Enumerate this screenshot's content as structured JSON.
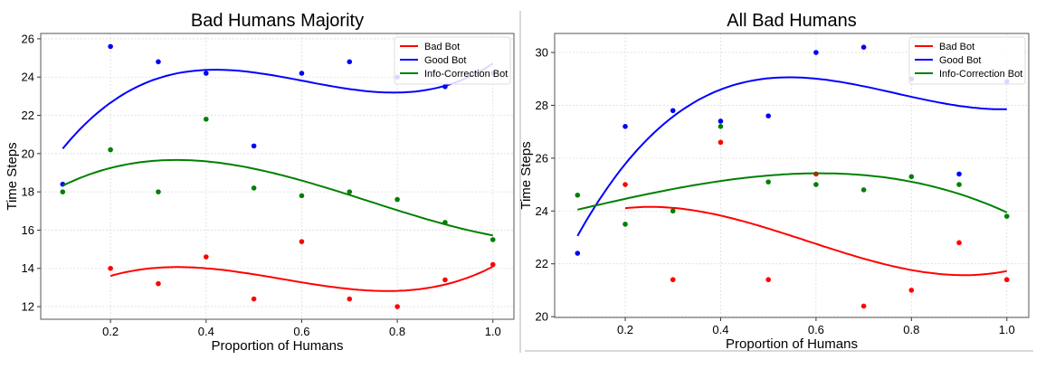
{
  "chart_data": [
    {
      "type": "scatter",
      "title": "Bad Humans Majority",
      "xlabel": "Proportion of Humans",
      "ylabel": "Time Steps",
      "xlim": [
        0.054,
        1.044
      ],
      "ylim": [
        11.34,
        26.28
      ],
      "xticks": [
        "0.2",
        "0.4",
        "0.6",
        "0.8",
        "1.0"
      ],
      "yticks": [
        "12",
        "14",
        "16",
        "18",
        "20",
        "22",
        "24",
        "26"
      ],
      "grid": true,
      "legend_position": "top-right",
      "trend": "cubic polynomial fit line per series",
      "series": [
        {
          "name": "Bad Bot",
          "color": "#ff0000",
          "x": [
            0.2,
            0.3,
            0.4,
            0.5,
            0.6,
            0.7,
            0.8,
            0.9,
            1.0
          ],
          "y": [
            14.0,
            13.2,
            14.6,
            12.4,
            15.4,
            12.4,
            12.0,
            13.4,
            14.2
          ]
        },
        {
          "name": "Good Bot",
          "color": "#0000ff",
          "x": [
            0.1,
            0.2,
            0.3,
            0.4,
            0.5,
            0.6,
            0.7,
            0.8,
            0.9,
            1.0
          ],
          "y": [
            18.4,
            25.6,
            24.8,
            24.2,
            20.4,
            24.2,
            24.8,
            24.0,
            23.5,
            24.2
          ]
        },
        {
          "name": "Info-Correction Bot",
          "color": "#008000",
          "x": [
            0.1,
            0.2,
            0.3,
            0.4,
            0.5,
            0.6,
            0.7,
            0.8,
            0.9,
            1.0
          ],
          "y": [
            18.0,
            20.2,
            18.0,
            21.8,
            18.2,
            17.8,
            18.0,
            17.6,
            16.4,
            15.5
          ]
        }
      ]
    },
    {
      "type": "scatter",
      "title": "All Bad Humans",
      "xlabel": "Proportion of Humans",
      "ylabel": "Time Steps",
      "xlim": [
        0.052,
        1.046
      ],
      "ylim": [
        19.97,
        30.72
      ],
      "xticks": [
        "0.2",
        "0.4",
        "0.6",
        "0.8",
        "1.0"
      ],
      "yticks": [
        "20",
        "22",
        "24",
        "26",
        "28",
        "30"
      ],
      "grid": true,
      "legend_position": "top-right",
      "trend": "cubic polynomial fit line per series",
      "series": [
        {
          "name": "Bad Bot",
          "color": "#ff0000",
          "x": [
            0.2,
            0.3,
            0.4,
            0.5,
            0.6,
            0.7,
            0.8,
            0.9,
            1.0
          ],
          "y": [
            25.0,
            21.4,
            26.6,
            21.4,
            25.4,
            20.4,
            21.0,
            22.8,
            21.4
          ]
        },
        {
          "name": "Good Bot",
          "color": "#0000ff",
          "x": [
            0.1,
            0.2,
            0.3,
            0.4,
            0.5,
            0.6,
            0.7,
            0.8,
            0.9,
            1.0
          ],
          "y": [
            22.4,
            27.2,
            27.8,
            27.4,
            27.6,
            30.0,
            30.2,
            29.0,
            25.4,
            28.9
          ]
        },
        {
          "name": "Info-Correction Bot",
          "color": "#008000",
          "x": [
            0.1,
            0.2,
            0.3,
            0.4,
            0.5,
            0.6,
            0.7,
            0.8,
            0.9,
            1.0
          ],
          "y": [
            24.6,
            23.5,
            24.0,
            27.2,
            25.1,
            25.0,
            24.8,
            25.3,
            25.0,
            23.8
          ]
        }
      ]
    }
  ]
}
